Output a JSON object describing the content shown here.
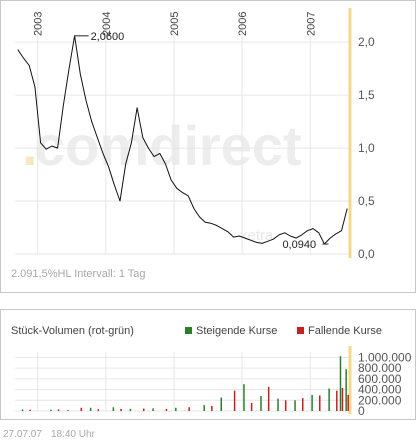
{
  "price_chart": {
    "info_text": "2.091,5%HL Intervall: 1 Tag",
    "watermark_main": "comdirect",
    "watermark_small": "xetra",
    "annotations": {
      "max": "2,0600",
      "min": "0,0940"
    }
  },
  "volume_chart": {
    "title": "Stück-Volumen (rot-grün)",
    "legend": [
      {
        "label": "Steigende Kurse",
        "color": "#2e7d2e"
      },
      {
        "label": "Fallende Kurse",
        "color": "#c62020"
      }
    ]
  },
  "footer": {
    "date": "27.07.07",
    "time": "18:40 Uhr"
  },
  "colors": {
    "line": "#111111",
    "grid": "#e6e6e6",
    "today_marker": "#f5d98a",
    "up": "#2e7d2e",
    "down": "#c62020"
  },
  "chart_data": [
    {
      "type": "line",
      "title": "",
      "xlabel": "",
      "ylabel": "",
      "x_ticks": [
        "2003",
        "2004",
        "2005",
        "2006",
        "2007"
      ],
      "y_ticks": [
        "0,0",
        "0,5",
        "1,0",
        "1,5",
        "2,0"
      ],
      "ylim": [
        0,
        2.2
      ],
      "x": [
        "2002-09",
        "2002-10",
        "2002-11",
        "2002-12",
        "2003-01",
        "2003-02",
        "2003-03",
        "2003-04",
        "2003-05",
        "2003-06",
        "2003-07",
        "2003-08",
        "2003-09",
        "2003-10",
        "2003-11",
        "2003-12",
        "2004-01",
        "2004-02",
        "2004-03",
        "2004-04",
        "2004-05",
        "2004-06",
        "2004-07",
        "2004-08",
        "2004-09",
        "2004-10",
        "2004-11",
        "2004-12",
        "2005-01",
        "2005-02",
        "2005-03",
        "2005-04",
        "2005-05",
        "2005-06",
        "2005-07",
        "2005-08",
        "2005-09",
        "2005-10",
        "2005-11",
        "2005-12",
        "2006-01",
        "2006-02",
        "2006-03",
        "2006-04",
        "2006-05",
        "2006-06",
        "2006-07",
        "2006-08",
        "2006-09",
        "2006-10",
        "2006-11",
        "2006-12",
        "2007-01",
        "2007-02",
        "2007-03",
        "2007-04",
        "2007-05",
        "2007-06",
        "2007-07"
      ],
      "values": [
        1.93,
        1.85,
        1.78,
        1.58,
        1.05,
        0.99,
        1.02,
        1.0,
        1.4,
        1.74,
        2.06,
        1.7,
        1.45,
        1.25,
        1.1,
        0.95,
        0.82,
        0.65,
        0.5,
        0.85,
        1.05,
        1.38,
        1.1,
        1.0,
        0.92,
        0.95,
        0.85,
        0.7,
        0.62,
        0.58,
        0.55,
        0.43,
        0.35,
        0.3,
        0.29,
        0.27,
        0.24,
        0.21,
        0.16,
        0.17,
        0.15,
        0.13,
        0.11,
        0.1,
        0.12,
        0.14,
        0.18,
        0.2,
        0.17,
        0.15,
        0.18,
        0.22,
        0.24,
        0.2,
        0.094,
        0.15,
        0.19,
        0.22,
        0.43
      ],
      "annotations": [
        {
          "label": "2,0600",
          "x": "2003-07",
          "value": 2.06
        },
        {
          "label": "0,0940",
          "x": "2007-03",
          "value": 0.094
        }
      ],
      "grid": true,
      "legend": "none"
    },
    {
      "type": "bar",
      "title": "Stück-Volumen (rot-grün)",
      "y_ticks": [
        "0",
        "200.000",
        "400.000",
        "600.000",
        "800.000",
        "1.000.000"
      ],
      "ylim": [
        0,
        1100000
      ],
      "legend": "top-right",
      "series": [
        {
          "name": "Steigende Kurse",
          "x": [
            "2002-10",
            "2003-03",
            "2003-06",
            "2003-10",
            "2004-02",
            "2004-05",
            "2004-09",
            "2005-01",
            "2005-06",
            "2005-09",
            "2006-01",
            "2006-04",
            "2006-07",
            "2006-10",
            "2007-01",
            "2007-04",
            "2007-06",
            "2007-07"
          ],
          "values": [
            30000,
            25000,
            20000,
            60000,
            70000,
            40000,
            50000,
            60000,
            110000,
            250000,
            500000,
            280000,
            230000,
            200000,
            300000,
            420000,
            1020000,
            780000
          ]
        },
        {
          "name": "Fallende Kurse",
          "x": [
            "2002-11",
            "2003-04",
            "2003-08",
            "2003-11",
            "2004-03",
            "2004-07",
            "2004-11",
            "2005-03",
            "2005-07",
            "2005-11",
            "2006-02",
            "2006-05",
            "2006-08",
            "2006-11",
            "2007-02",
            "2007-05",
            "2007-06",
            "2007-07"
          ],
          "values": [
            25000,
            30000,
            60000,
            35000,
            40000,
            45000,
            40000,
            70000,
            95000,
            380000,
            150000,
            450000,
            200000,
            240000,
            290000,
            380000,
            430000,
            300000
          ]
        }
      ]
    }
  ]
}
